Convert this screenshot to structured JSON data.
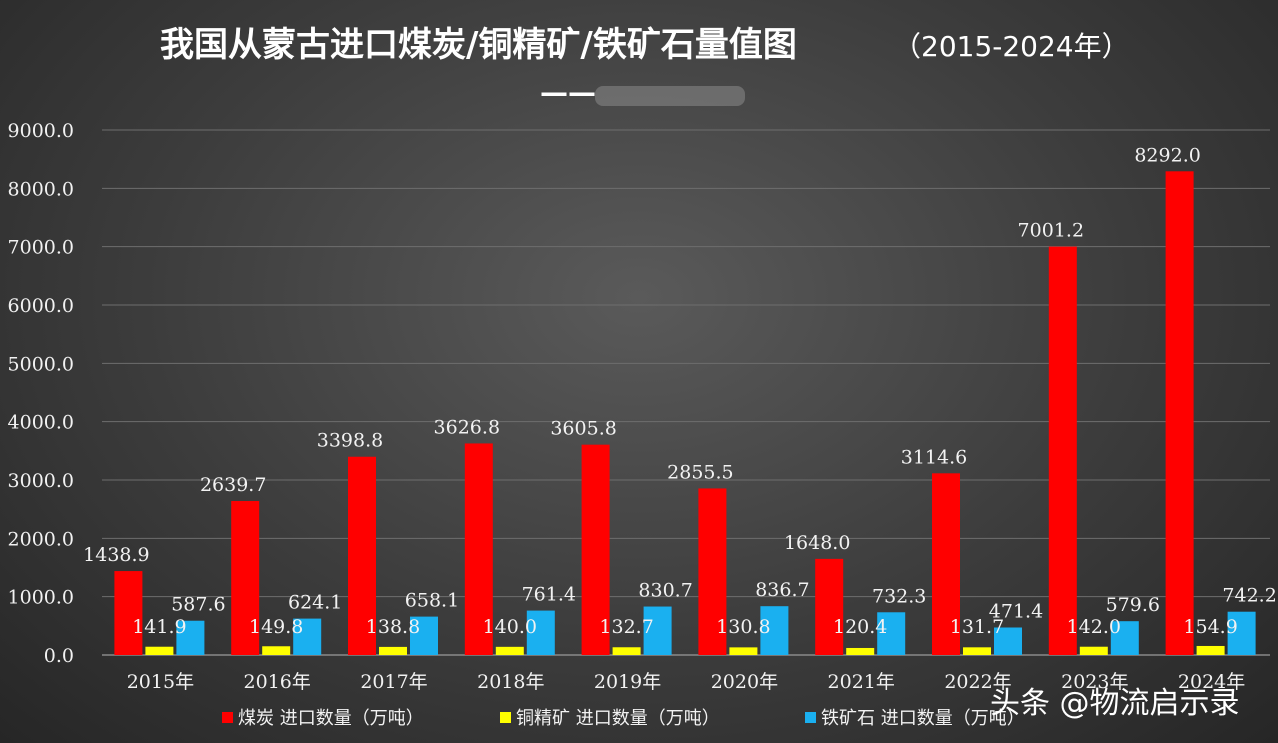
{
  "title": "我国从蒙古进口煤炭/铜精矿/铁矿石量值图",
  "title_years": "（2015-2024年）",
  "subtitle_dash": "——",
  "watermark": "头条 @物流启示录",
  "colors": {
    "coal": "#ff0000",
    "copper": "#ffff00",
    "iron": "#1ab0f0",
    "grid": "#6e6e6e",
    "axis": "#9a9a9a"
  },
  "chart_data": {
    "type": "bar",
    "categories": [
      "2015年",
      "2016年",
      "2017年",
      "2018年",
      "2019年",
      "2020年",
      "2021年",
      "2022年",
      "2023年",
      "2024年"
    ],
    "series": [
      {
        "name": "煤炭 进口数量（万吨）",
        "values": [
          1438.9,
          2639.7,
          3398.8,
          3626.8,
          3605.8,
          2855.5,
          1648.0,
          3114.6,
          7001.2,
          8292.0
        ]
      },
      {
        "name": "铜精矿 进口数量（万吨）",
        "values": [
          141.9,
          149.8,
          138.8,
          140.0,
          132.7,
          130.8,
          120.4,
          131.7,
          142.0,
          154.9
        ]
      },
      {
        "name": "铁矿石 进口数量（万吨）",
        "values": [
          587.6,
          624.1,
          658.1,
          761.4,
          830.7,
          836.7,
          732.3,
          471.4,
          579.6,
          742.2
        ]
      }
    ],
    "ylim": [
      0,
      9000
    ],
    "yticks": [
      "0.0",
      "1000.0",
      "2000.0",
      "3000.0",
      "4000.0",
      "5000.0",
      "6000.0",
      "7000.0",
      "8000.0",
      "9000.0"
    ],
    "grid": true,
    "legend": "bottom",
    "xlabel": "",
    "ylabel": ""
  }
}
